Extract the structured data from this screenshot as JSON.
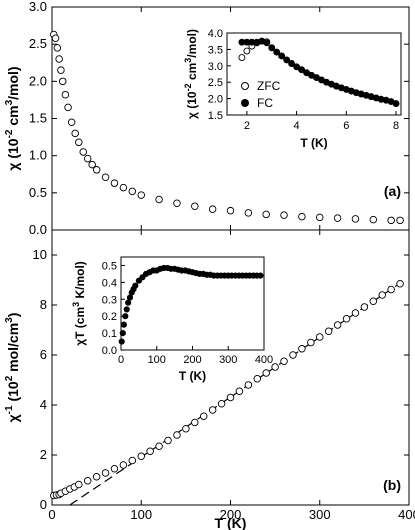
{
  "chart_data": [
    {
      "id": "a",
      "type": "scatter",
      "panel_label": "(a)",
      "xlabel": "",
      "ylabel_main": "χ (10",
      "ylabel_sup": "-2",
      "ylabel_mid": " cm",
      "ylabel_sup2": "3",
      "ylabel_end": "/mol)",
      "xlim": [
        0,
        400
      ],
      "ylim": [
        0,
        3.0
      ],
      "yticks": [
        0.0,
        0.5,
        1.0,
        1.5,
        2.0,
        2.5,
        3.0
      ],
      "ytick_labels": [
        "0.0",
        "0.5",
        "1.0",
        "1.5",
        "2.0",
        "2.5",
        "3.0"
      ],
      "xticks": [
        0,
        100,
        200,
        300,
        400
      ],
      "x_tick_labels_shown": false,
      "series": [
        {
          "marker": "open-circle",
          "model": "curie-weiss",
          "points": [
            [
              2,
              2.63
            ],
            [
              4,
              2.58
            ],
            [
              6,
              2.45
            ],
            [
              8,
              2.3
            ],
            [
              10,
              2.15
            ],
            [
              12,
              2.0
            ],
            [
              15,
              1.82
            ],
            [
              18,
              1.65
            ],
            [
              22,
              1.45
            ],
            [
              26,
              1.3
            ],
            [
              30,
              1.18
            ],
            [
              35,
              1.05
            ],
            [
              40,
              0.96
            ],
            [
              45,
              0.88
            ],
            [
              50,
              0.81
            ],
            [
              60,
              0.71
            ],
            [
              70,
              0.63
            ],
            [
              80,
              0.57
            ],
            [
              90,
              0.52
            ],
            [
              100,
              0.47
            ],
            [
              120,
              0.41
            ],
            [
              140,
              0.36
            ],
            [
              160,
              0.32
            ],
            [
              180,
              0.28
            ],
            [
              200,
              0.26
            ],
            [
              220,
              0.23
            ],
            [
              240,
              0.21
            ],
            [
              260,
              0.2
            ],
            [
              280,
              0.18
            ],
            [
              300,
              0.17
            ],
            [
              320,
              0.16
            ],
            [
              340,
              0.15
            ],
            [
              360,
              0.14
            ],
            [
              380,
              0.13
            ],
            [
              390,
              0.13
            ]
          ]
        }
      ],
      "inset": {
        "xlabel": "T (K)",
        "ylabel_main": "χ (10",
        "ylabel_sup": "-2",
        "ylabel_mid": " cm",
        "ylabel_sup2": "3",
        "ylabel_end": "/mol)",
        "xlim": [
          1.2,
          8.2
        ],
        "ylim": [
          1.5,
          4.0
        ],
        "xticks": [
          2,
          4,
          6,
          8
        ],
        "yticks": [
          1.5,
          2.0,
          2.5,
          3.0,
          3.5,
          4.0
        ],
        "ytick_labels": [
          "1.5",
          "2.0",
          "2.5",
          "3.0",
          "3.5",
          "4.0"
        ],
        "legend": [
          {
            "label": "ZFC",
            "marker": "open-circle"
          },
          {
            "label": "FC",
            "marker": "filled-circle"
          }
        ],
        "series": [
          {
            "name": "ZFC",
            "marker": "open-circle",
            "x": [
              1.8,
              2.0,
              2.2,
              2.4,
              2.6,
              2.8
            ],
            "y": [
              3.25,
              3.45,
              3.6,
              3.7,
              3.75,
              3.73
            ]
          },
          {
            "name": "FC",
            "marker": "filled-circle",
            "x": [
              1.8,
              2.0,
              2.2,
              2.4,
              2.6,
              2.8,
              3.0,
              3.2,
              3.4,
              3.6,
              3.8,
              4.0,
              4.2,
              4.4,
              4.6,
              4.8,
              5.0,
              5.2,
              5.4,
              5.6,
              5.8,
              6.0,
              6.2,
              6.4,
              6.6,
              6.8,
              7.0,
              7.2,
              7.4,
              7.6,
              7.8,
              8.0
            ],
            "y": [
              3.72,
              3.72,
              3.72,
              3.72,
              3.75,
              3.7,
              3.55,
              3.42,
              3.3,
              3.18,
              3.07,
              2.97,
              2.88,
              2.79,
              2.71,
              2.64,
              2.57,
              2.5,
              2.44,
              2.38,
              2.33,
              2.28,
              2.23,
              2.18,
              2.14,
              2.1,
              2.06,
              2.02,
              1.98,
              1.95,
              1.91,
              1.85
            ]
          }
        ]
      }
    },
    {
      "id": "b",
      "type": "scatter",
      "panel_label": "(b)",
      "xlabel": "T (K)",
      "ylabel_main": "χ",
      "ylabel_supA": "-1",
      "ylabel_mid": " (10",
      "ylabel_sup": "2",
      "ylabel_mid2": " mol/cm",
      "ylabel_sup2": "3",
      "ylabel_end": ")",
      "xlim": [
        0,
        400
      ],
      "ylim": [
        0,
        11
      ],
      "xticks": [
        0,
        100,
        200,
        300,
        400
      ],
      "xtick_labels": [
        "0",
        "100",
        "200",
        "300",
        "400"
      ],
      "yticks": [
        0,
        2,
        4,
        6,
        8,
        10
      ],
      "ytick_labels": [
        "0",
        "2",
        "4",
        "6",
        "8",
        "10"
      ],
      "fit_line": {
        "style": "dashed",
        "x": [
          20,
          390
        ],
        "y": [
          0.0,
          8.87
        ]
      },
      "series": [
        {
          "marker": "open-circle",
          "points": [
            [
              2,
              0.38
            ],
            [
              5,
              0.4
            ],
            [
              8,
              0.42
            ],
            [
              10,
              0.47
            ],
            [
              15,
              0.55
            ],
            [
              20,
              0.64
            ],
            [
              25,
              0.72
            ],
            [
              30,
              0.82
            ],
            [
              40,
              0.97
            ],
            [
              50,
              1.13
            ],
            [
              60,
              1.28
            ],
            [
              70,
              1.45
            ],
            [
              80,
              1.6
            ],
            [
              90,
              1.78
            ],
            [
              100,
              1.95
            ],
            [
              110,
              2.15
            ],
            [
              120,
              2.35
            ],
            [
              130,
              2.58
            ],
            [
              140,
              2.8
            ],
            [
              150,
              3.05
            ],
            [
              160,
              3.3
            ],
            [
              170,
              3.55
            ],
            [
              180,
              3.8
            ],
            [
              190,
              4.05
            ],
            [
              200,
              4.3
            ],
            [
              210,
              4.55
            ],
            [
              220,
              4.8
            ],
            [
              230,
              5.05
            ],
            [
              240,
              5.28
            ],
            [
              250,
              5.52
            ],
            [
              260,
              5.75
            ],
            [
              270,
              6.0
            ],
            [
              280,
              6.25
            ],
            [
              290,
              6.5
            ],
            [
              300,
              6.72
            ],
            [
              310,
              6.95
            ],
            [
              320,
              7.2
            ],
            [
              330,
              7.45
            ],
            [
              340,
              7.68
            ],
            [
              350,
              7.92
            ],
            [
              360,
              8.15
            ],
            [
              370,
              8.4
            ],
            [
              380,
              8.62
            ],
            [
              390,
              8.85
            ]
          ]
        }
      ],
      "inset": {
        "xlabel": "T (K)",
        "ylabel_main": "χT (cm",
        "ylabel_sup": "3",
        "ylabel_end": " K/mol)",
        "xlim": [
          0,
          400
        ],
        "ylim": [
          0,
          0.55
        ],
        "xticks": [
          0,
          100,
          200,
          300,
          400
        ],
        "xtick_labels": [
          "0",
          "100",
          "200",
          "300",
          "400"
        ],
        "yticks": [
          0.0,
          0.1,
          0.2,
          0.3,
          0.4,
          0.5
        ],
        "ytick_labels": [
          "0.0",
          "0.1",
          "0.2",
          "0.3",
          "0.4",
          "0.5"
        ],
        "series": [
          {
            "marker": "filled-circle",
            "points": [
              [
                2,
                0.05
              ],
              [
                5,
                0.1
              ],
              [
                8,
                0.15
              ],
              [
                12,
                0.2
              ],
              [
                16,
                0.24
              ],
              [
                20,
                0.28
              ],
              [
                25,
                0.31
              ],
              [
                30,
                0.34
              ],
              [
                35,
                0.36
              ],
              [
                40,
                0.38
              ],
              [
                50,
                0.41
              ],
              [
                60,
                0.43
              ],
              [
                70,
                0.45
              ],
              [
                80,
                0.46
              ],
              [
                90,
                0.47
              ],
              [
                100,
                0.47
              ],
              [
                110,
                0.48
              ],
              [
                120,
                0.485
              ],
              [
                130,
                0.485
              ],
              [
                140,
                0.48
              ],
              [
                150,
                0.48
              ],
              [
                160,
                0.475
              ],
              [
                170,
                0.47
              ],
              [
                180,
                0.47
              ],
              [
                190,
                0.465
              ],
              [
                200,
                0.46
              ],
              [
                210,
                0.455
              ],
              [
                220,
                0.45
              ],
              [
                230,
                0.45
              ],
              [
                240,
                0.445
              ],
              [
                250,
                0.445
              ],
              [
                260,
                0.44
              ],
              [
                270,
                0.44
              ],
              [
                280,
                0.44
              ],
              [
                290,
                0.44
              ],
              [
                300,
                0.44
              ],
              [
                310,
                0.44
              ],
              [
                320,
                0.44
              ],
              [
                330,
                0.44
              ],
              [
                340,
                0.44
              ],
              [
                350,
                0.44
              ],
              [
                360,
                0.44
              ],
              [
                370,
                0.44
              ],
              [
                380,
                0.44
              ],
              [
                390,
                0.44
              ]
            ]
          }
        ]
      }
    }
  ]
}
